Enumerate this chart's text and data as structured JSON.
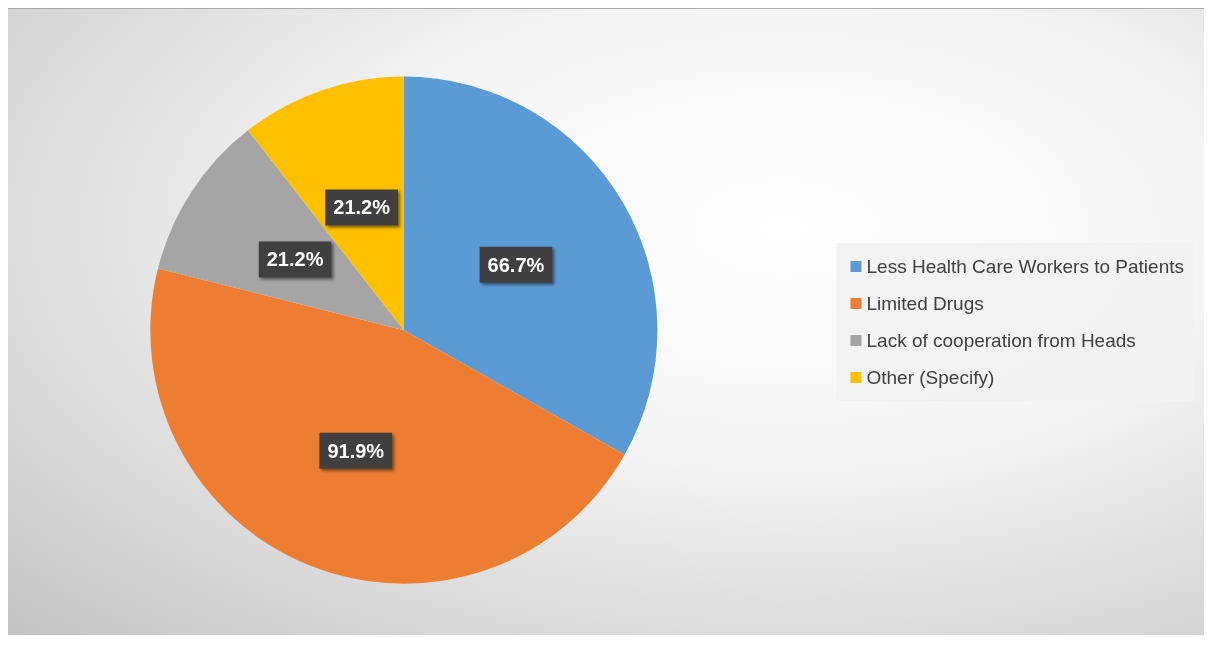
{
  "chart_data": {
    "type": "pie",
    "categories": [
      "Less Health Care Workers to Patients",
      "Limited Drugs",
      "Lack of cooperation from Heads",
      "Other (Specify)"
    ],
    "values": [
      66.7,
      91.9,
      21.2,
      21.2
    ],
    "colors": [
      "#5b9bd5",
      "#ed7d31",
      "#a5a5a5",
      "#ffc000"
    ],
    "value_labels": [
      "66.7%",
      "91.9%",
      "21.2%",
      "21.2%"
    ],
    "legend": "right"
  }
}
